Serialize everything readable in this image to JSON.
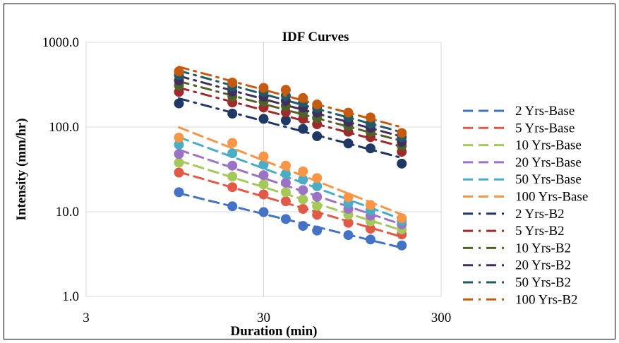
{
  "chart_data": {
    "type": "scatter",
    "title": "IDF Curves",
    "xlabel": "Duration (min)",
    "ylabel": "Intensity (mm/hr)",
    "x_scale": "log",
    "y_scale": "log",
    "xlim": [
      3,
      300
    ],
    "ylim": [
      1,
      1000
    ],
    "x_ticks": [
      3,
      30,
      300
    ],
    "x_tick_labels": [
      "3",
      "30",
      "300"
    ],
    "y_ticks": [
      1,
      10,
      100,
      1000
    ],
    "y_tick_labels": [
      "1.0",
      "10.0",
      "100.0",
      "1000.0"
    ],
    "grid": true,
    "legend_position": "right",
    "x": [
      10,
      20,
      30,
      40,
      50,
      60,
      90,
      120,
      180
    ],
    "series": [
      {
        "name": "2 Yrs-Base",
        "color": "#4472C4",
        "style": "dashed",
        "values": [
          17,
          11.6,
          9.9,
          8.2,
          6.8,
          6.0,
          5.3,
          4.7,
          4.0
        ]
      },
      {
        "name": "5 Yrs-Base",
        "color": "#E05A47",
        "style": "dashed",
        "values": [
          29,
          19.5,
          16,
          13.3,
          10.8,
          9.2,
          7.4,
          6.3,
          5.4
        ]
      },
      {
        "name": "10 Yrs-Base",
        "color": "#A5C85A",
        "style": "dashed",
        "values": [
          38,
          26,
          21,
          17,
          14,
          11.7,
          9.2,
          7.7,
          6.2
        ]
      },
      {
        "name": "20 Yrs-Base",
        "color": "#9B73C4",
        "style": "dashed",
        "values": [
          48,
          35,
          27,
          22,
          18,
          15,
          10.8,
          9.0,
          7.1
        ]
      },
      {
        "name": "50 Yrs-Base",
        "color": "#4BACC6",
        "style": "dashed",
        "values": [
          62,
          49,
          36,
          28,
          24,
          20,
          12.6,
          10.4,
          7.8
        ]
      },
      {
        "name": "100 Yrs-Base",
        "color": "#F79646",
        "style": "dashed",
        "values": [
          75,
          65,
          45,
          35,
          30,
          25,
          14.8,
          12,
          8.4
        ]
      },
      {
        "name": "2 Yrs-B2",
        "color": "#1F3864",
        "style": "dash-dot",
        "values": [
          190,
          144,
          125,
          120,
          95,
          78,
          64,
          56,
          37
        ]
      },
      {
        "name": "5 Yrs-B2",
        "color": "#9E2A2B",
        "style": "dash-dot",
        "values": [
          260,
          195,
          170,
          150,
          125,
          108,
          88,
          76,
          51
        ]
      },
      {
        "name": "10 Yrs-B2",
        "color": "#4F6228",
        "style": "dash-dot",
        "values": [
          310,
          230,
          200,
          178,
          148,
          128,
          102,
          88,
          60
        ]
      },
      {
        "name": "20 Yrs-B2",
        "color": "#3F2F5E",
        "style": "dash-dot",
        "values": [
          355,
          262,
          228,
          205,
          170,
          148,
          115,
          98,
          67
        ]
      },
      {
        "name": "50 Yrs-B2",
        "color": "#215967",
        "style": "dash-dot",
        "values": [
          410,
          300,
          260,
          235,
          195,
          168,
          130,
          110,
          76
        ]
      },
      {
        "name": "100 Yrs-B2",
        "color": "#C55A11",
        "style": "dash-dot",
        "values": [
          455,
          335,
          290,
          275,
          220,
          185,
          148,
          130,
          85
        ]
      }
    ]
  }
}
